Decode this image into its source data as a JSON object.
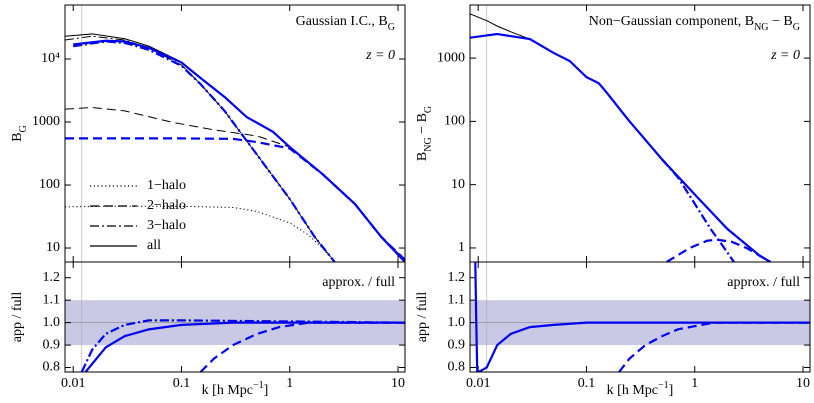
{
  "chart_data": [
    {
      "type": "line",
      "xlog": true,
      "ylog": true,
      "title": [
        {
          "text": "Gaussian I.C., B"
        },
        {
          "text": "G",
          "sub": true
        }
      ],
      "annotation": [
        {
          "text": "z = 0"
        }
      ],
      "ylabel": [
        {
          "text": "B"
        },
        {
          "text": "G",
          "sub": true
        }
      ],
      "xlabel": [
        {
          "text": "k [h Mpc"
        },
        {
          "text": "−1",
          "sup": true
        },
        {
          "text": "]"
        }
      ],
      "xlim": [
        0.0084,
        11.6
      ],
      "xticks": [
        0.01,
        0.1,
        1,
        10
      ],
      "ylim": [
        6,
        72000
      ],
      "yticks": [
        10,
        100,
        1000,
        {
          "value": 10000,
          "label": "10⁴"
        }
      ],
      "vline": 0.012,
      "legend": [
        {
          "label": "1−halo",
          "dash": "dotted"
        },
        {
          "label": "2−halo",
          "dash": "dashed"
        },
        {
          "label": "3−halo",
          "dash": "dashdot"
        },
        {
          "label": "all",
          "dash": "solid"
        }
      ],
      "series": [
        {
          "color": "#000000",
          "dash": "dotted",
          "width": 1,
          "x": [
            0.0084,
            0.02,
            0.1,
            0.3,
            0.5,
            1,
            1.5,
            2,
            2.6
          ],
          "values": [
            45,
            46,
            46,
            44,
            38,
            25,
            16,
            10,
            6
          ]
        },
        {
          "color": "#000000",
          "dash": "dashed",
          "width": 1,
          "x": [
            0.0084,
            0.015,
            0.03,
            0.08,
            0.2,
            0.5,
            1,
            2,
            4,
            7,
            11.6
          ],
          "values": [
            1600,
            1700,
            1500,
            1000,
            750,
            600,
            400,
            150,
            50,
            15,
            6.5
          ]
        },
        {
          "color": "#0000ee",
          "dash": "dashed",
          "width": 2.2,
          "x": [
            0.0084,
            0.1,
            0.3,
            0.5,
            1,
            2,
            4,
            7,
            11.6
          ],
          "values": [
            550,
            550,
            540,
            480,
            380,
            150,
            50,
            15,
            6.5
          ]
        },
        {
          "color": "#000000",
          "dash": "dashdot",
          "width": 1,
          "x": [
            0.0084,
            0.015,
            0.03,
            0.05,
            0.1,
            0.15,
            0.25,
            0.5,
            1,
            1.7,
            2.6
          ],
          "values": [
            20000,
            23000,
            20000,
            15000,
            8000,
            4000,
            1500,
            300,
            60,
            15,
            6
          ]
        },
        {
          "color": "#0000ee",
          "dash": "dashdot",
          "width": 2.2,
          "x": [
            0.01,
            0.02,
            0.03,
            0.05,
            0.1,
            0.15,
            0.25,
            0.5,
            1,
            1.7,
            2.6
          ],
          "values": [
            16000,
            19000,
            18000,
            14000,
            7800,
            4000,
            1500,
            300,
            60,
            15,
            6
          ]
        },
        {
          "color": "#000000",
          "dash": "solid",
          "width": 1,
          "x": [
            0.0084,
            0.015,
            0.03,
            0.05,
            0.1,
            0.15,
            0.25,
            0.4,
            0.7,
            1,
            2,
            4,
            7,
            11.6
          ],
          "values": [
            23000,
            25000,
            21000,
            16000,
            9000,
            5000,
            2500,
            1200,
            700,
            400,
            150,
            50,
            15,
            6
          ]
        },
        {
          "color": "#0000ee",
          "dash": "solid",
          "width": 2.2,
          "x": [
            0.01,
            0.02,
            0.03,
            0.05,
            0.1,
            0.15,
            0.25,
            0.4,
            0.7,
            1,
            2,
            4,
            7,
            11.6
          ],
          "values": [
            17000,
            19500,
            19000,
            15000,
            8800,
            5000,
            2500,
            1200,
            700,
            400,
            150,
            50,
            15,
            6
          ]
        }
      ],
      "ratio": {
        "ylabel": [
          {
            "text": "app / full"
          }
        ],
        "annotation": [
          {
            "text": "approx. / full"
          }
        ],
        "ylim": [
          0.78,
          1.27
        ],
        "yticks": [
          0.8,
          0.9,
          {
            "value": 1,
            "label": "1.0"
          },
          1.1,
          1.2
        ],
        "band": [
          0.9,
          1.1
        ],
        "refline": 1,
        "series": [
          {
            "color": "#000000",
            "dash": "dashdot",
            "width": 1,
            "x": [
              0.012,
              0.015,
              0.02,
              0.03,
              0.05,
              0.1,
              11.6
            ],
            "values": [
              0.78,
              0.88,
              0.95,
              0.99,
              1.01,
              1.01,
              1
            ]
          },
          {
            "color": "#0000ee",
            "dash": "dashdot",
            "width": 2.2,
            "x": [
              0.012,
              0.015,
              0.02,
              0.03,
              0.05,
              0.1,
              11.6
            ],
            "values": [
              0.78,
              0.88,
              0.95,
              0.99,
              1.01,
              1.01,
              1
            ]
          },
          {
            "color": "#0000ee",
            "dash": "solid",
            "width": 2.2,
            "x": [
              0.013,
              0.02,
              0.03,
              0.05,
              0.1,
              0.3,
              11.6
            ],
            "values": [
              0.78,
              0.89,
              0.94,
              0.97,
              0.99,
              1,
              1
            ]
          },
          {
            "color": "#0000ee",
            "dash": "dashed",
            "width": 2.2,
            "x": [
              0.15,
              0.2,
              0.3,
              0.5,
              0.8,
              1.5,
              11.6
            ],
            "values": [
              0.78,
              0.84,
              0.9,
              0.95,
              0.98,
              1,
              1
            ]
          }
        ]
      }
    },
    {
      "type": "line",
      "xlog": true,
      "ylog": true,
      "title": [
        {
          "text": "Non−Gaussian component, B"
        },
        {
          "text": "NG",
          "sub": true
        },
        {
          "text": " − B"
        },
        {
          "text": "G",
          "sub": true
        }
      ],
      "annotation": [
        {
          "text": "z = 0"
        }
      ],
      "ylabel": [
        {
          "text": "B"
        },
        {
          "text": "NG",
          "sub": true
        },
        {
          "text": " − B"
        },
        {
          "text": "G",
          "sub": true
        }
      ],
      "xlabel": [
        {
          "text": "k [h Mpc"
        },
        {
          "text": "−1",
          "sup": true
        },
        {
          "text": "]"
        }
      ],
      "xlim": [
        0.0084,
        11.6
      ],
      "xticks": [
        0.01,
        0.1,
        1,
        10
      ],
      "ylim": [
        0.6,
        6900
      ],
      "yticks": [
        1,
        10,
        100,
        1000
      ],
      "vline": 0.012,
      "series": [
        {
          "color": "#000000",
          "dash": "solid",
          "width": 1,
          "x": [
            0.0084,
            0.012,
            0.015,
            0.02,
            0.03
          ],
          "values": [
            5000,
            3900,
            3200,
            2600,
            2000
          ]
        },
        {
          "color": "#0000ee",
          "dash": "dashdot",
          "width": 2.2,
          "x": [
            0.5,
            0.7,
            1,
            1.4,
            1.8,
            2.3
          ],
          "values": [
            25,
            13,
            5,
            2,
            1.1,
            0.6
          ]
        },
        {
          "color": "#0000ee",
          "dash": "dashed",
          "width": 2.2,
          "x": [
            0.55,
            0.9,
            1.3,
            1.6,
            2.2,
            3,
            4,
            5
          ],
          "values": [
            0.6,
            1,
            1.3,
            1.35,
            1.25,
            1,
            0.75,
            0.6
          ]
        },
        {
          "color": "#0000ee",
          "dash": "solid",
          "width": 2.2,
          "x": [
            0.0084,
            0.015,
            0.03,
            0.05,
            0.07,
            0.1,
            0.13,
            0.15,
            0.25,
            0.5,
            1,
            2,
            4,
            5
          ],
          "values": [
            2100,
            2400,
            2000,
            1200,
            900,
            500,
            400,
            300,
            100,
            25,
            7,
            2,
            0.75,
            0.6
          ]
        }
      ],
      "ratio": {
        "ylabel": [
          {
            "text": "app / full"
          }
        ],
        "annotation": [
          {
            "text": "approx. / full"
          }
        ],
        "ylim": [
          0.78,
          1.27
        ],
        "yticks": [
          0.8,
          0.9,
          {
            "value": 1,
            "label": "1.0"
          },
          1.1,
          1.2
        ],
        "band": [
          0.9,
          1.1
        ],
        "refline": 1,
        "series": [
          {
            "color": "#0000ee",
            "dash": "solid",
            "width": 2.2,
            "x": [
              0.0094,
              0.0096,
              0.0098,
              0.0101,
              0.012,
              0.015,
              0.02,
              0.03,
              0.05,
              0.1,
              11.6
            ],
            "values": [
              1.27,
              1,
              0.78,
              0.78,
              0.8,
              0.9,
              0.95,
              0.98,
              0.99,
              1,
              1
            ]
          },
          {
            "color": "#0000ee",
            "dash": "dashed",
            "width": 2.2,
            "x": [
              0.2,
              0.25,
              0.35,
              0.5,
              0.7,
              1.5,
              11.6
            ],
            "values": [
              0.78,
              0.84,
              0.9,
              0.94,
              0.97,
              1,
              1
            ]
          }
        ]
      }
    }
  ]
}
